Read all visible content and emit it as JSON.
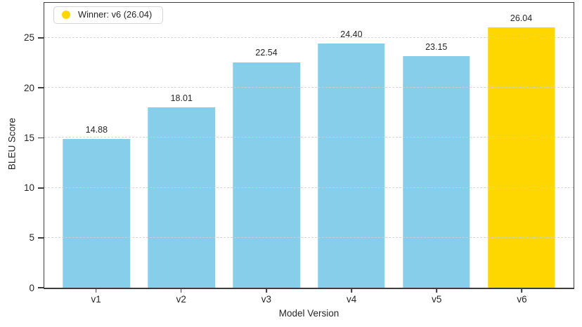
{
  "chart_data": {
    "type": "bar",
    "title": "",
    "xlabel": "Model Version",
    "ylabel": "BLEU Score",
    "categories": [
      "v1",
      "v2",
      "v3",
      "v4",
      "v5",
      "v6"
    ],
    "values": [
      14.88,
      18.01,
      22.54,
      24.4,
      23.15,
      26.04
    ],
    "value_labels": [
      "14.88",
      "18.01",
      "22.54",
      "24.40",
      "23.15",
      "26.04"
    ],
    "yticks": [
      0,
      5,
      10,
      15,
      20,
      25
    ],
    "ylim": [
      0,
      28.5
    ],
    "grid": "horizontal-dashed",
    "legend_position": "upper-left",
    "legend": {
      "label": "Winner: v6 (26.04)",
      "marker": "circle",
      "marker_color": "#FFD700"
    },
    "bar_colors": [
      "#87CEEB",
      "#87CEEB",
      "#87CEEB",
      "#87CEEB",
      "#87CEEB",
      "#FFD700"
    ],
    "colors": {
      "bar_default": "#87CEEB",
      "bar_winner": "#FFD700",
      "grid": "#cfcfcf",
      "spine": "#3d3d3d",
      "text": "#262626",
      "legend_border": "#d5d5d5",
      "legend_background": "#ffffff"
    }
  }
}
